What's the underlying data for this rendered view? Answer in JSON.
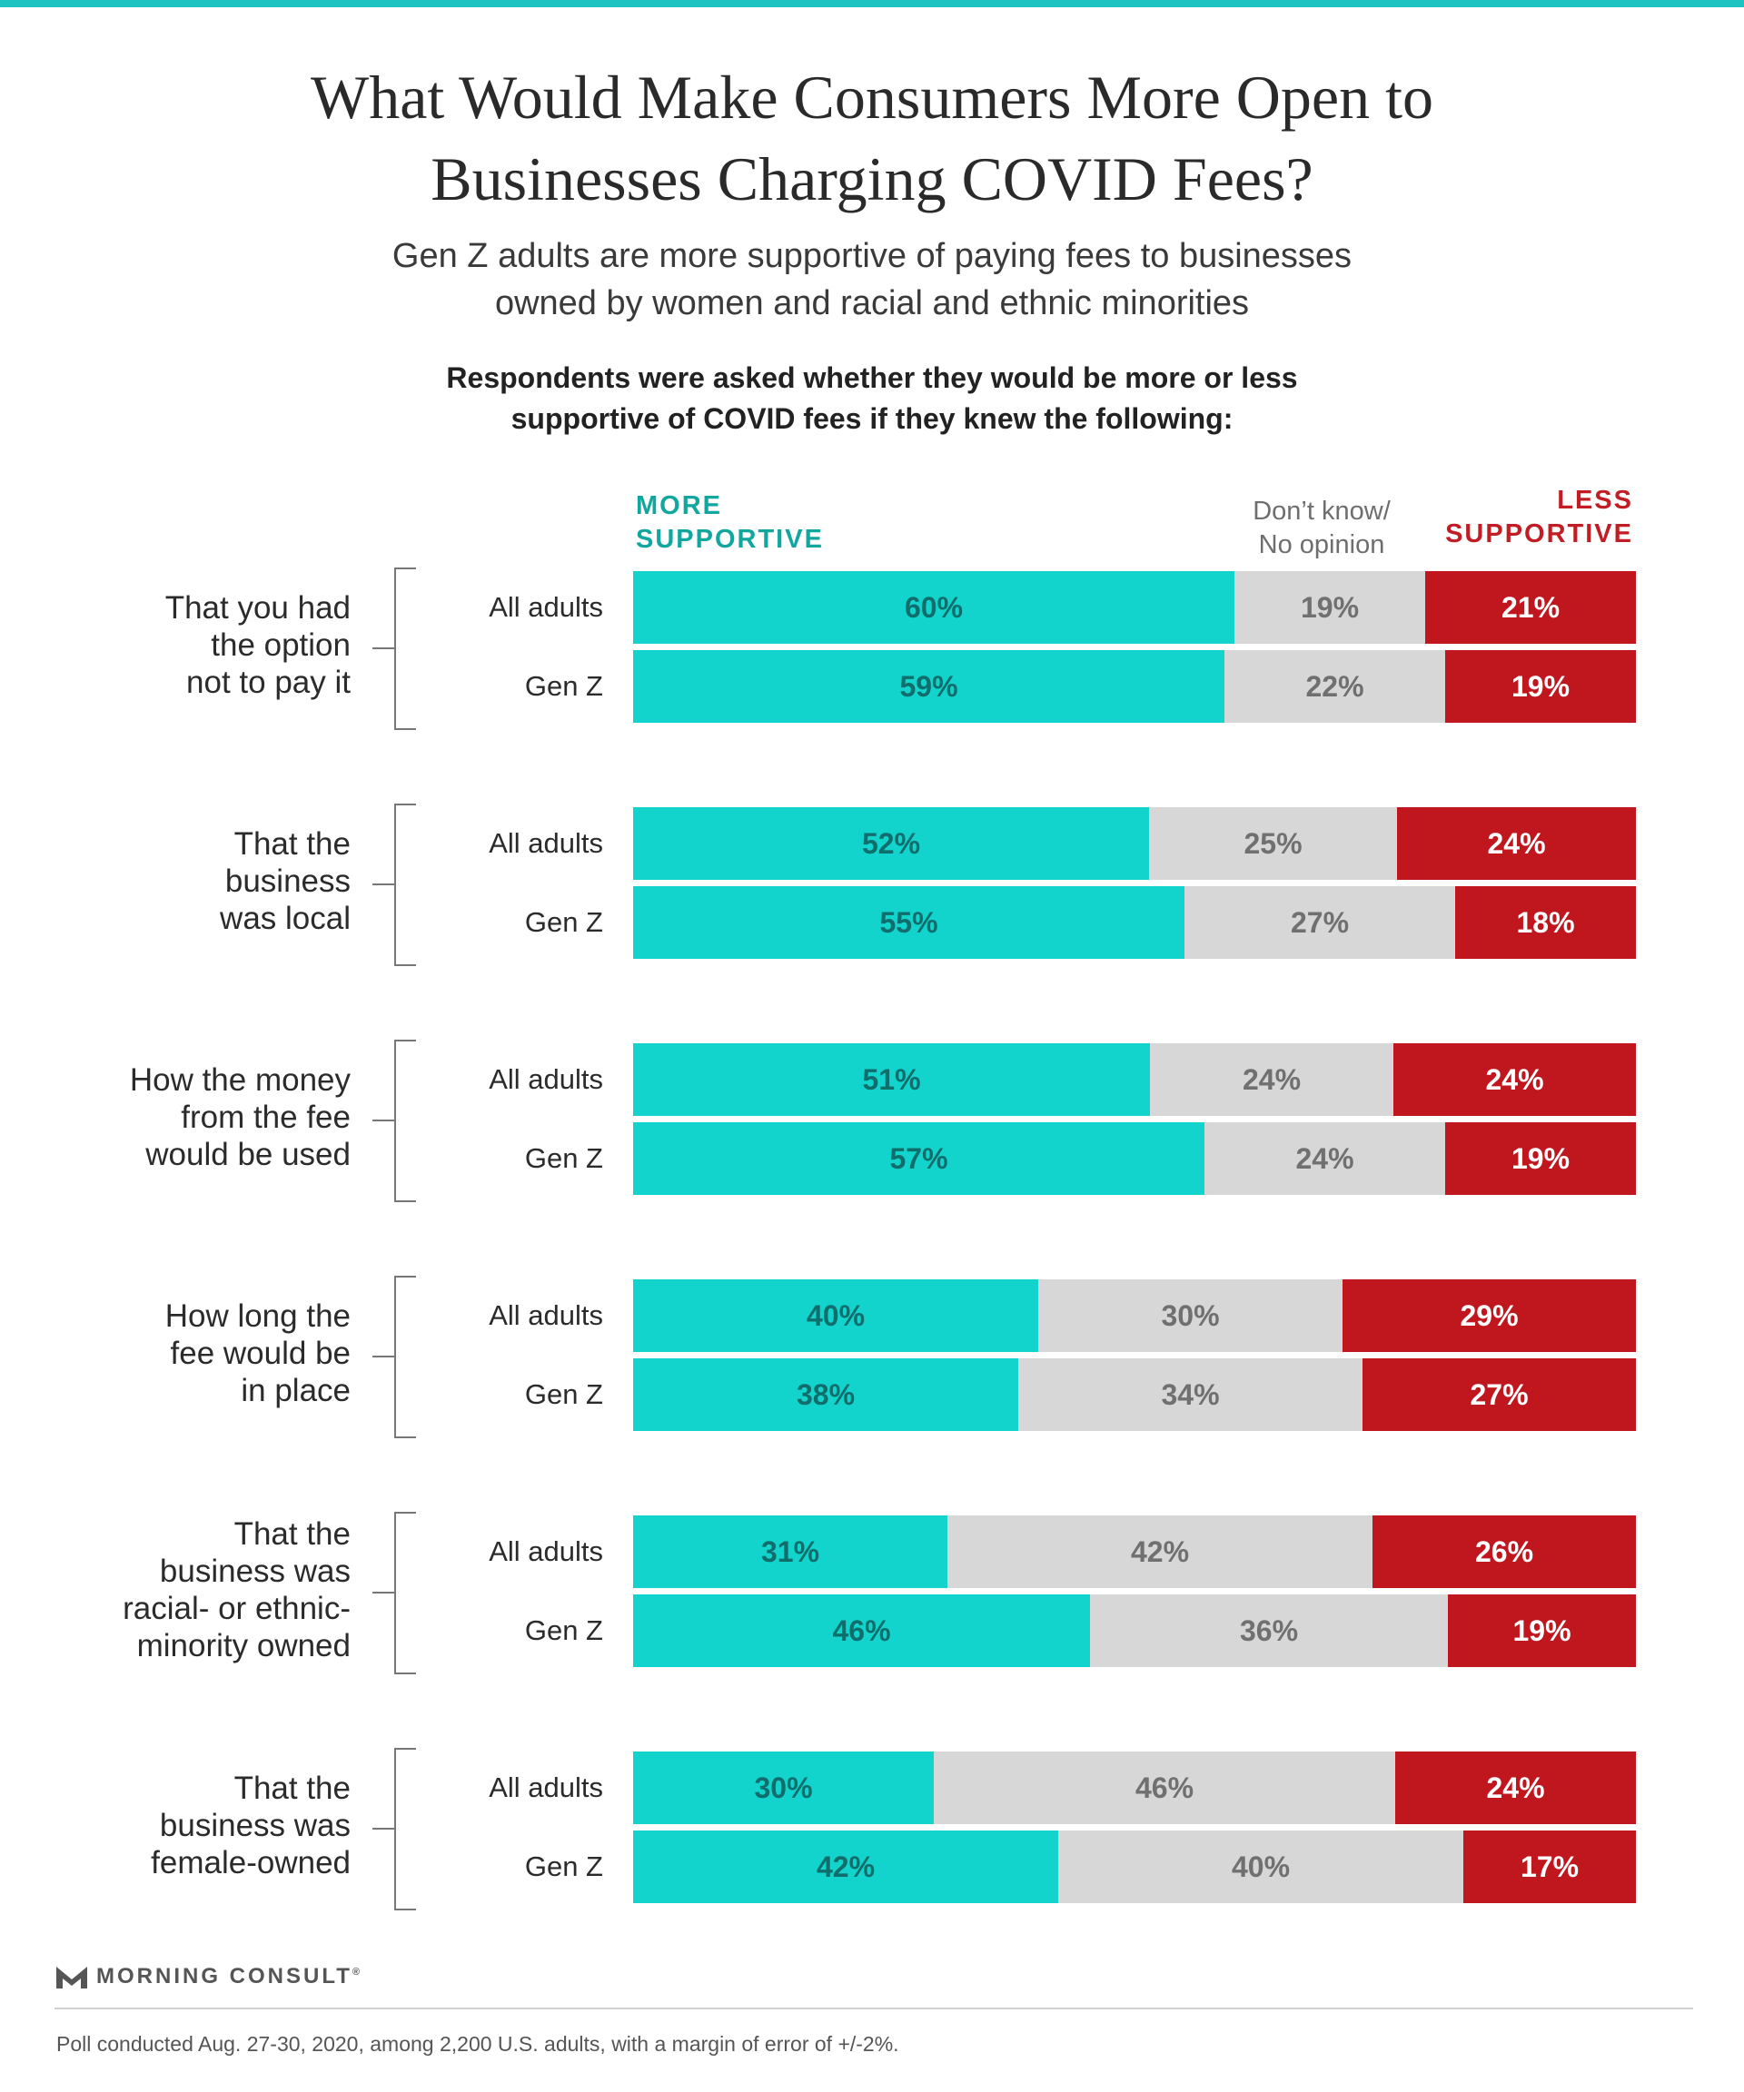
{
  "title": {
    "line1": "What Would Make Consumers More Open to",
    "line2": "Businesses Charging COVID Fees?"
  },
  "subtitle": {
    "line1": "Gen Z adults are more supportive of paying fees to businesses",
    "line2": "owned by women and racial and ethnic minorities"
  },
  "question": {
    "line1": "Respondents were asked whether they would be more or less",
    "line2": "supportive of COVID fees if they knew the following:"
  },
  "legend": {
    "more_line1": "MORE",
    "more_line2": "SUPPORTIVE",
    "dk_line1": "Don’t know/",
    "dk_line2": "No opinion",
    "less_line1": "LESS",
    "less_line2": "SUPPORTIVE"
  },
  "colors": {
    "more": "#13d3cd",
    "dont_know": "#d7d7d7",
    "less": "#c0171f",
    "accent_bar": "#1cc3c0"
  },
  "chart_data": {
    "type": "bar",
    "orientation": "horizontal",
    "stacked": true,
    "normalized": true,
    "series_names": [
      "MORE SUPPORTIVE",
      "Don’t know/No opinion",
      "LESS SUPPORTIVE"
    ],
    "groups": [
      {
        "label_lines": [
          "That you had",
          "the option",
          "not to pay it"
        ],
        "rows": [
          {
            "label": "All adults",
            "values": [
              60,
              19,
              21
            ],
            "labels": [
              "60%",
              "19%",
              "21%"
            ]
          },
          {
            "label": "Gen Z",
            "values": [
              59,
              22,
              19
            ],
            "labels": [
              "59%",
              "22%",
              "19%"
            ]
          }
        ]
      },
      {
        "label_lines": [
          "That the",
          "business",
          "was local"
        ],
        "rows": [
          {
            "label": "All adults",
            "values": [
              52,
              25,
              24
            ],
            "labels": [
              "52%",
              "25%",
              "24%"
            ]
          },
          {
            "label": "Gen Z",
            "values": [
              55,
              27,
              18
            ],
            "labels": [
              "55%",
              "27%",
              "18%"
            ]
          }
        ]
      },
      {
        "label_lines": [
          "How the money",
          "from the fee",
          "would be used"
        ],
        "rows": [
          {
            "label": "All adults",
            "values": [
              51,
              24,
              24
            ],
            "labels": [
              "51%",
              "24%",
              "24%"
            ]
          },
          {
            "label": "Gen Z",
            "values": [
              57,
              24,
              19
            ],
            "labels": [
              "57%",
              "24%",
              "19%"
            ]
          }
        ]
      },
      {
        "label_lines": [
          "How long the",
          "fee would be",
          "in place"
        ],
        "rows": [
          {
            "label": "All adults",
            "values": [
              40,
              30,
              29
            ],
            "labels": [
              "40%",
              "30%",
              "29%"
            ]
          },
          {
            "label": "Gen Z",
            "values": [
              38,
              34,
              27
            ],
            "labels": [
              "38%",
              "34%",
              "27%"
            ]
          }
        ]
      },
      {
        "label_lines": [
          "That the",
          "business was",
          "racial- or ethnic-",
          "minority owned"
        ],
        "rows": [
          {
            "label": "All adults",
            "values": [
              31,
              42,
              26
            ],
            "labels": [
              "31%",
              "42%",
              "26%"
            ]
          },
          {
            "label": "Gen Z",
            "values": [
              46,
              36,
              19
            ],
            "labels": [
              "46%",
              "36%",
              "19%"
            ]
          }
        ]
      },
      {
        "label_lines": [
          "That the",
          "business was",
          "female-owned"
        ],
        "rows": [
          {
            "label": "All adults",
            "values": [
              30,
              46,
              24
            ],
            "labels": [
              "30%",
              "46%",
              "24%"
            ]
          },
          {
            "label": "Gen Z",
            "values": [
              42,
              40,
              17
            ],
            "labels": [
              "42%",
              "40%",
              "17%"
            ]
          }
        ]
      }
    ]
  },
  "brand": {
    "name": "MORNING CONSULT",
    "mark": "®"
  },
  "footnote": "Poll conducted Aug. 27-30, 2020, among 2,200 U.S. adults, with a margin of error of +/-2%."
}
